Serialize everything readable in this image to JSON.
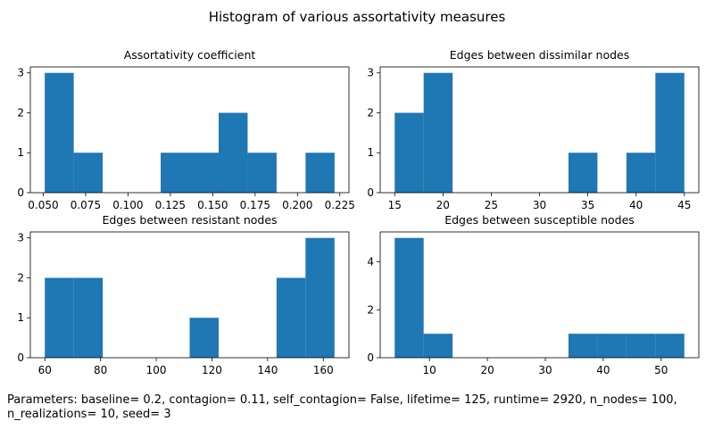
{
  "suptitle": "Histogram of various assortativity measures",
  "footnote": "Parameters: baseline= 0.2, contagion= 0.11, self_contagion= False, lifetime= 125, runtime= 2920, n_nodes= 100, n_realizations= 10, seed= 3",
  "colors": {
    "bar": "#1f77b4",
    "axis": "#000000",
    "text": "#000000",
    "background": "#ffffff"
  },
  "chart_data": [
    {
      "type": "bar",
      "title": "Assortativity coefficient",
      "bin_edges": [
        0.0509,
        0.068,
        0.0851,
        0.1022,
        0.1193,
        0.1364,
        0.1535,
        0.1706,
        0.1877,
        0.2048,
        0.2219
      ],
      "counts": [
        3,
        1,
        0,
        0,
        1,
        1,
        2,
        1,
        0,
        1
      ],
      "xlim": [
        0.0424,
        0.2304
      ],
      "ylim": [
        0,
        3.15
      ],
      "xticks": [
        0.05,
        0.075,
        0.1,
        0.125,
        0.15,
        0.175,
        0.2,
        0.225
      ],
      "xtick_labels": [
        "0.050",
        "0.075",
        "0.100",
        "0.125",
        "0.150",
        "0.175",
        "0.200",
        "0.225"
      ],
      "yticks": [
        0,
        1,
        2,
        3
      ],
      "ytick_labels": [
        "0",
        "1",
        "2",
        "3"
      ]
    },
    {
      "type": "bar",
      "title": "Edges between dissimilar nodes",
      "bin_edges": [
        15,
        18,
        21,
        24,
        27,
        30,
        33,
        36,
        39,
        42,
        45
      ],
      "counts": [
        2,
        3,
        0,
        0,
        0,
        0,
        1,
        0,
        1,
        3
      ],
      "xlim": [
        13.5,
        46.5
      ],
      "ylim": [
        0,
        3.15
      ],
      "xticks": [
        15,
        20,
        25,
        30,
        35,
        40,
        45
      ],
      "xtick_labels": [
        "15",
        "20",
        "25",
        "30",
        "35",
        "40",
        "45"
      ],
      "yticks": [
        0,
        1,
        2,
        3
      ],
      "ytick_labels": [
        "0",
        "1",
        "2",
        "3"
      ]
    },
    {
      "type": "bar",
      "title": "Edges between resistant nodes",
      "bin_edges": [
        60,
        70.4,
        80.8,
        91.2,
        101.6,
        112,
        122.4,
        132.8,
        143.2,
        153.6,
        164
      ],
      "counts": [
        2,
        2,
        0,
        0,
        0,
        1,
        0,
        0,
        2,
        3
      ],
      "xlim": [
        54.8,
        169.2
      ],
      "ylim": [
        0,
        3.15
      ],
      "xticks": [
        60,
        80,
        100,
        120,
        140,
        160
      ],
      "xtick_labels": [
        "60",
        "80",
        "100",
        "120",
        "140",
        "160"
      ],
      "yticks": [
        0,
        1,
        2,
        3
      ],
      "ytick_labels": [
        "0",
        "1",
        "2",
        "3"
      ]
    },
    {
      "type": "bar",
      "title": "Edges between susceptible nodes",
      "bin_edges": [
        4,
        9,
        14,
        19,
        24,
        29,
        34,
        39,
        44,
        49,
        54
      ],
      "counts": [
        5,
        1,
        0,
        0,
        0,
        0,
        1,
        1,
        1,
        1
      ],
      "xlim": [
        1.5,
        56.5
      ],
      "ylim": [
        0,
        5.25
      ],
      "xticks": [
        10,
        20,
        30,
        40,
        50
      ],
      "xtick_labels": [
        "10",
        "20",
        "30",
        "40",
        "50"
      ],
      "yticks": [
        0,
        2,
        4
      ],
      "ytick_labels": [
        "0",
        "2",
        "4"
      ]
    }
  ]
}
